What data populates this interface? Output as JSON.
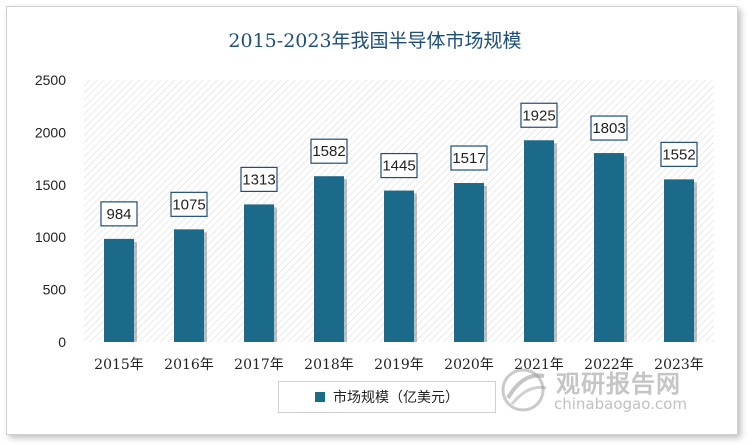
{
  "chart_data": {
    "type": "bar",
    "title": "2015-2023年我国半导体市场规模",
    "categories": [
      "2015年",
      "2016年",
      "2017年",
      "2018年",
      "2019年",
      "2020年",
      "2021年",
      "2022年",
      "2023年"
    ],
    "series": [
      {
        "name": "市场规模（亿美元）",
        "values": [
          984,
          1075,
          1313,
          1582,
          1445,
          1517,
          1925,
          1803,
          1552
        ]
      }
    ],
    "ylim": [
      0,
      2500
    ],
    "yticks": [
      0,
      500,
      1000,
      1500,
      2000,
      2500
    ],
    "legend_position": "bottom",
    "grid": false,
    "bar_color": "#1b6a8a"
  },
  "watermark": {
    "name_cn": "观研报告网",
    "url": "chinabaogao.com"
  }
}
